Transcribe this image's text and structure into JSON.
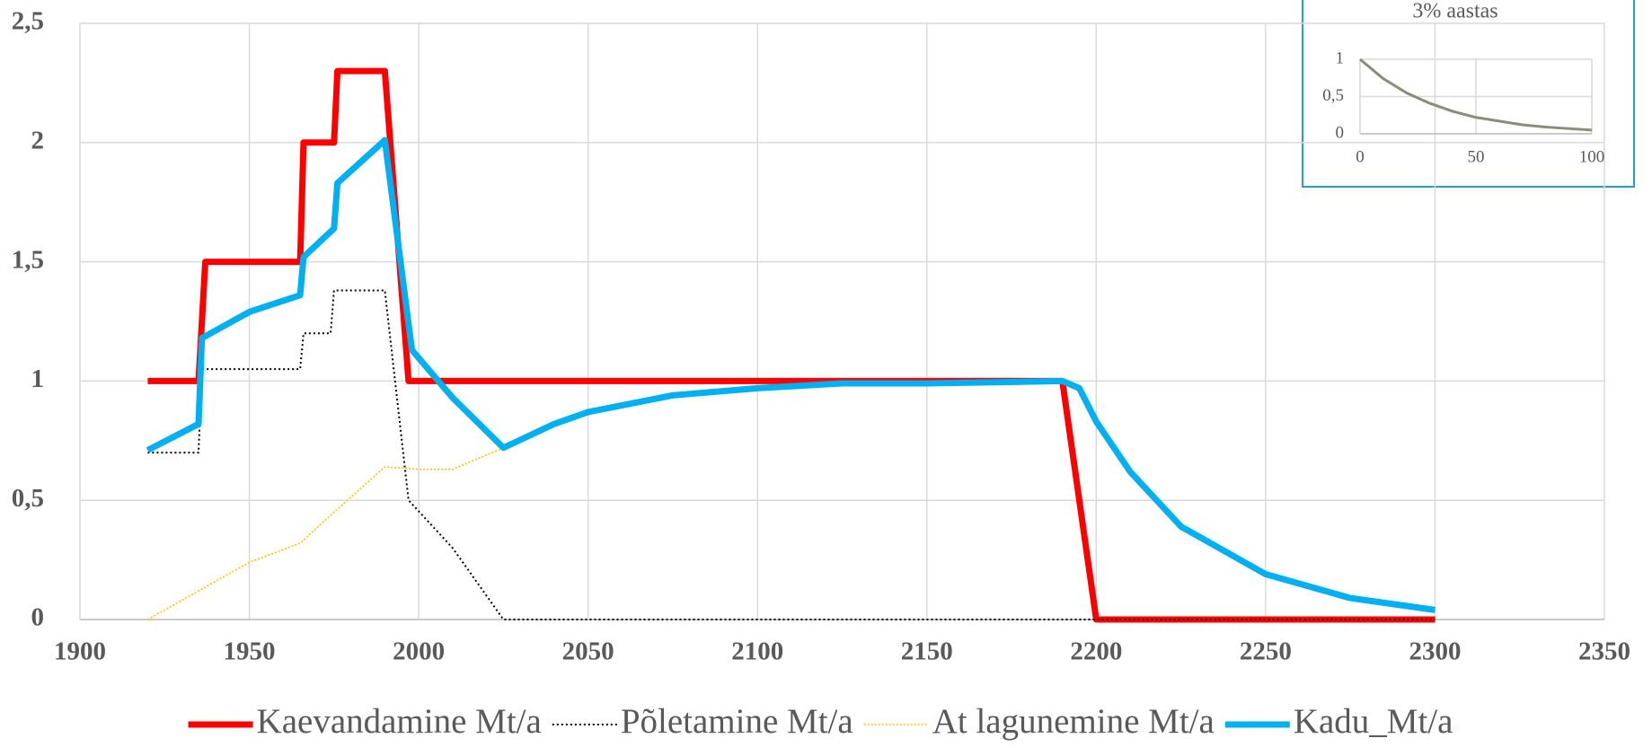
{
  "chart_data": [
    {
      "type": "line",
      "xlim": [
        1900,
        2350
      ],
      "xticks": [
        1900,
        1950,
        2000,
        2050,
        2100,
        2150,
        2200,
        2250,
        2300,
        2350
      ],
      "ylim": [
        0,
        2.5
      ],
      "yticks": [
        0,
        {
          "value": 0.5,
          "label": "0,5"
        },
        1,
        {
          "value": 1.5,
          "label": "1,5"
        },
        2,
        {
          "value": 2.5,
          "label": "2,5"
        }
      ],
      "grid": true,
      "legend": "bottom",
      "series": [
        {
          "name": "Kaevandamine Mt/a",
          "color": "#ff0000",
          "x": [
            1920,
            1935,
            1937,
            1965,
            1966,
            1975,
            1976,
            1990,
            1997,
            2190,
            2200,
            2300
          ],
          "values": [
            1,
            1,
            1.5,
            1.5,
            2,
            2,
            2.3,
            2.3,
            1,
            1,
            0,
            0
          ]
        },
        {
          "name": "Põletamine Mt/a",
          "color": "#000000",
          "x": [
            1920,
            1935,
            1936,
            1965,
            1966,
            1974,
            1975,
            1990,
            1997,
            2010,
            2025,
            2300
          ],
          "values": [
            0.7,
            0.7,
            1.05,
            1.05,
            1.2,
            1.2,
            1.38,
            1.38,
            0.5,
            0.3,
            0,
            0
          ]
        },
        {
          "name": "At lagunemine Mt/a",
          "color": "#ffc000",
          "x": [
            1920,
            1935,
            1950,
            1965,
            1975,
            1990,
            2000,
            2010,
            2025
          ],
          "values": [
            0,
            0.12,
            0.24,
            0.32,
            0.45,
            0.64,
            0.63,
            0.63,
            0.72
          ]
        },
        {
          "name": "Kadu_Mt/a",
          "color": "#00b0f0",
          "x": [
            1920,
            1935,
            1936,
            1950,
            1965,
            1966,
            1975,
            1976,
            1990,
            1998,
            2010,
            2025,
            2040,
            2050,
            2075,
            2100,
            2125,
            2150,
            2190,
            2195,
            2200,
            2210,
            2225,
            2250,
            2275,
            2300
          ],
          "values": [
            0.71,
            0.82,
            1.18,
            1.29,
            1.36,
            1.52,
            1.64,
            1.83,
            2.01,
            1.13,
            0.93,
            0.72,
            0.82,
            0.87,
            0.94,
            0.97,
            0.99,
            0.99,
            1,
            0.97,
            0.83,
            0.62,
            0.39,
            0.19,
            0.09,
            0.04
          ]
        }
      ]
    },
    {
      "type": "line",
      "title": "3% aastas",
      "xlim": [
        0,
        100
      ],
      "xticks": [
        0,
        50,
        100
      ],
      "ylim": [
        0,
        1
      ],
      "yticks": [
        0,
        {
          "value": 0.5,
          "label": "0,5"
        },
        1
      ],
      "grid": true,
      "series": [
        {
          "color": "#8c8c7c",
          "x": [
            0,
            10,
            20,
            30,
            40,
            50,
            60,
            70,
            80,
            90,
            100
          ],
          "values": [
            1,
            0.74,
            0.55,
            0.41,
            0.3,
            0.22,
            0.17,
            0.12,
            0.09,
            0.07,
            0.05
          ]
        }
      ]
    }
  ]
}
